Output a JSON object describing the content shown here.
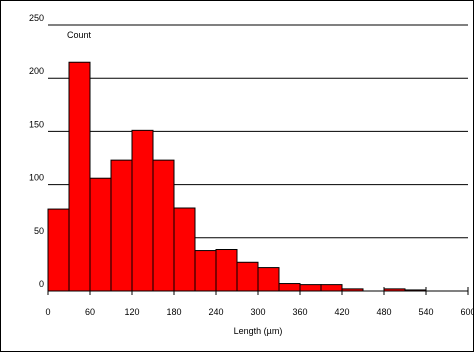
{
  "chart_data": {
    "type": "bar",
    "title": "",
    "ylabel": "Count",
    "xlabel": "Length (µm)",
    "bin_width": 30,
    "x": [
      0,
      30,
      60,
      90,
      120,
      150,
      180,
      210,
      240,
      270,
      300,
      330,
      360,
      390,
      420,
      450,
      480,
      510,
      540,
      570
    ],
    "values": [
      77,
      215,
      106,
      123,
      151,
      123,
      78,
      38,
      39,
      27,
      22,
      7,
      6,
      6,
      2,
      0,
      2,
      1,
      0,
      0
    ],
    "xlim": [
      0,
      600
    ],
    "ylim": [
      0,
      250
    ],
    "xticks": [
      0,
      60,
      120,
      180,
      240,
      300,
      360,
      420,
      480,
      540,
      600
    ],
    "yticks": [
      0,
      50,
      100,
      150,
      200,
      250
    ],
    "grid": "horizontal",
    "legend": "none",
    "bar_color": "#ff0000"
  }
}
